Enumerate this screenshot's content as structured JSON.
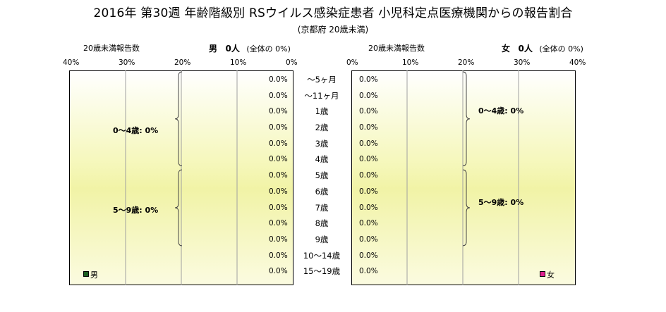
{
  "title": "2016年 第30週 年齢階級別 RSウイルス感染症患者 小児科定点医療機関からの報告割合",
  "subtitle": "(京都府 20歳未満)",
  "axis_caption": "20歳未満報告数",
  "male": {
    "label": "男",
    "count": "0人",
    "share": "(全体の 0%)",
    "legend": "男",
    "color": "#1b5e20"
  },
  "female": {
    "label": "女",
    "count": "0人",
    "share": "(全体の 0%)",
    "legend": "女",
    "color": "#e0208f"
  },
  "groups": {
    "g0_4": "0〜4歳: 0%",
    "g5_9": "5〜9歳: 0%"
  },
  "chart_data": {
    "type": "bar",
    "orientation": "horizontal-population-pyramid",
    "title": "2016年 第30週 年齢階級別 RSウイルス感染症患者 小児科定点医療機関からの報告割合",
    "subtitle": "(京都府 20歳未満)",
    "categories": [
      "〜5ヶ月",
      "〜11ヶ月",
      "1歳",
      "2歳",
      "3歳",
      "4歳",
      "5歳",
      "6歳",
      "7歳",
      "8歳",
      "9歳",
      "10〜14歳",
      "15〜19歳"
    ],
    "series": [
      {
        "name": "男",
        "values": [
          0,
          0,
          0,
          0,
          0,
          0,
          0,
          0,
          0,
          0,
          0,
          0,
          0
        ],
        "labels": [
          "0.0%",
          "0.0%",
          "0.0%",
          "0.0%",
          "0.0%",
          "0.0%",
          "0.0%",
          "0.0%",
          "0.0%",
          "0.0%",
          "0.0%",
          "0.0%",
          "0.0%"
        ]
      },
      {
        "name": "女",
        "values": [
          0,
          0,
          0,
          0,
          0,
          0,
          0,
          0,
          0,
          0,
          0,
          0,
          0
        ],
        "labels": [
          "0.0%",
          "0.0%",
          "0.0%",
          "0.0%",
          "0.0%",
          "0.0%",
          "0.0%",
          "0.0%",
          "0.0%",
          "0.0%",
          "0.0%",
          "0.0%",
          "0.0%"
        ]
      }
    ],
    "male_ticks": [
      "40%",
      "30%",
      "20%",
      "10%",
      "0%"
    ],
    "female_ticks": [
      "0%",
      "10%",
      "20%",
      "30%",
      "40%"
    ],
    "xlim": [
      0,
      40
    ],
    "grid": true,
    "legend": "bottom-corners"
  }
}
